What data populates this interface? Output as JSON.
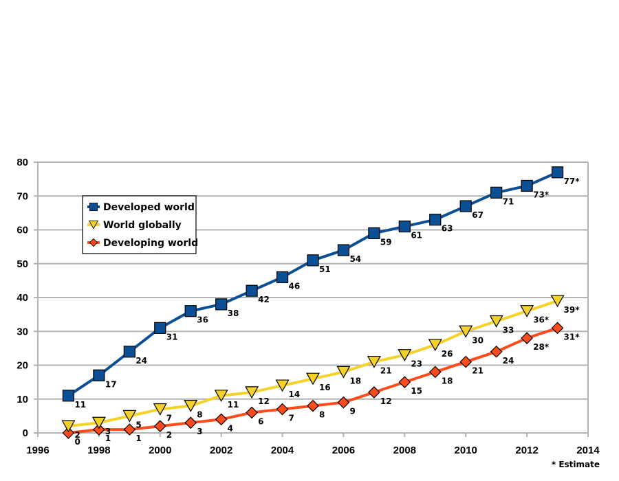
{
  "chart_data": {
    "type": "line",
    "xlim": [
      1996,
      2014
    ],
    "ylim": [
      0,
      80
    ],
    "x_ticks": [
      1996,
      1998,
      2000,
      2002,
      2004,
      2006,
      2008,
      2010,
      2012,
      2014
    ],
    "y_ticks": [
      0,
      10,
      20,
      30,
      40,
      50,
      60,
      70,
      80
    ],
    "grid": true,
    "legend_position": "upper-left",
    "x": [
      1997,
      1998,
      1999,
      2000,
      2001,
      2002,
      2003,
      2004,
      2005,
      2006,
      2007,
      2008,
      2009,
      2010,
      2011,
      2012,
      2013
    ],
    "series": [
      {
        "name": "Developed world",
        "color": "#0b4f94",
        "marker": "square",
        "values": [
          11,
          17,
          24,
          31,
          36,
          38,
          42,
          46,
          51,
          54,
          59,
          61,
          63,
          67,
          71,
          73,
          77
        ],
        "labels": [
          "11",
          "17",
          "24",
          "31",
          "36",
          "38",
          "42",
          "46",
          "51",
          "54",
          "59",
          "61",
          "63",
          "67",
          "71",
          "73*",
          "77*"
        ]
      },
      {
        "name": "World globally",
        "color": "#f5d229",
        "marker": "triangle-down",
        "values": [
          2,
          3,
          5,
          7,
          8,
          11,
          12,
          14,
          16,
          18,
          21,
          23,
          26,
          30,
          33,
          36,
          39
        ],
        "labels": [
          "2",
          "3",
          "5",
          "7",
          "8",
          "11",
          "12",
          "14",
          "16",
          "18",
          "21",
          "23",
          "26",
          "30",
          "33",
          "36*",
          "39*"
        ]
      },
      {
        "name": "Developing world",
        "color": "#ff4c1c",
        "marker": "diamond",
        "values": [
          0,
          1,
          1,
          2,
          3,
          4,
          6,
          7,
          8,
          9,
          12,
          15,
          18,
          21,
          24,
          28,
          31
        ],
        "labels": [
          "0",
          "1",
          "1",
          "2",
          "3",
          "4",
          "6",
          "7",
          "8",
          "9",
          "12",
          "15",
          "18",
          "21",
          "24",
          "28*",
          "31*"
        ]
      }
    ],
    "annotation": "* Estimate"
  }
}
